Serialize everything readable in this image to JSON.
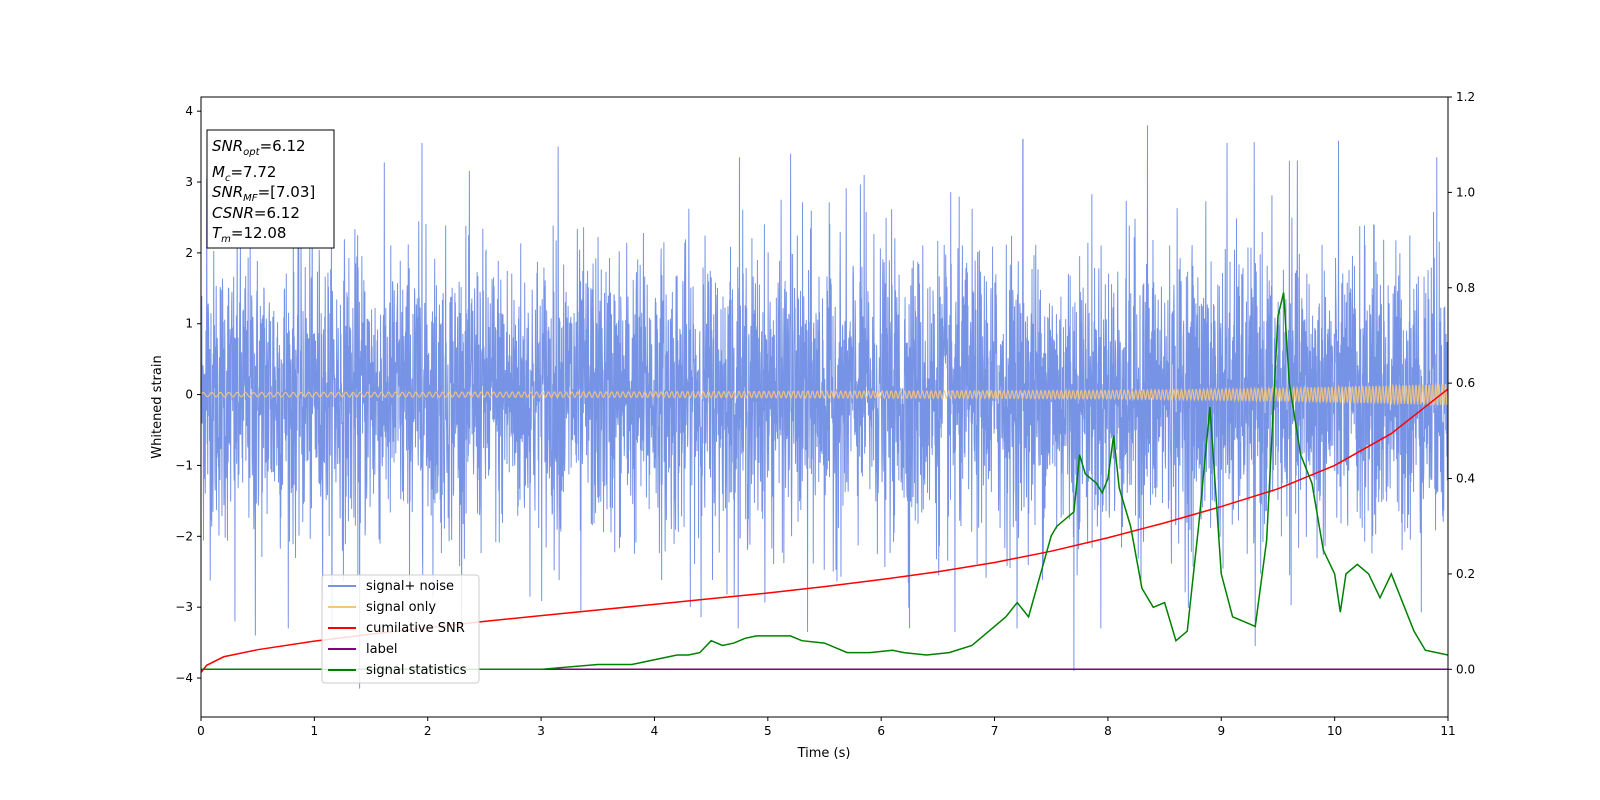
{
  "chart_data": {
    "type": "line",
    "xlabel": "Time (s)",
    "ylabel": "Whitened strain",
    "xlim": [
      0,
      11
    ],
    "ylim_left": [
      -4.55,
      4.2
    ],
    "ylim_right": [
      -0.1,
      1.2
    ],
    "x_ticks": [
      0,
      1,
      2,
      3,
      4,
      5,
      6,
      7,
      8,
      9,
      10,
      11
    ],
    "y_left_ticks": [
      -4,
      -3,
      -2,
      -1,
      0,
      1,
      2,
      3,
      4
    ],
    "y_right_ticks": [
      0.0,
      0.2,
      0.4,
      0.6,
      0.8,
      1.0,
      1.2
    ],
    "grid": false,
    "legend_position": "lower-left",
    "annotation": [
      {
        "base": "SNR",
        "sub": "opt",
        "value": "=6.12"
      },
      {
        "base": "M",
        "sub": "c",
        "value": "=7.72"
      },
      {
        "base": "SNR",
        "sub": "MF",
        "value": "=[7.03]"
      },
      {
        "base": "CSNR",
        "sub": "",
        "value": "=6.12"
      },
      {
        "base": "T",
        "sub": "m",
        "value": "=12.08"
      }
    ],
    "series": [
      {
        "name": "signal+ noise",
        "color": "#7793e6",
        "axis": "left",
        "description": "whitened detector strain, approx. zero-mean noise with spread about ±1.5 and peaks near ±3.5",
        "envelope": {
          "x": [
            0,
            11
          ],
          "y_min": -3.3,
          "y_max": 3.6
        },
        "spikes": [
          {
            "x": 0.05,
            "y": 3.05
          },
          {
            "x": 0.3,
            "y": -3.2
          },
          {
            "x": 0.48,
            "y": -3.4
          },
          {
            "x": 1.4,
            "y": -4.15
          },
          {
            "x": 1.95,
            "y": 3.55
          },
          {
            "x": 3.15,
            "y": 3.5
          },
          {
            "x": 3.35,
            "y": -3.05
          },
          {
            "x": 4.75,
            "y": 3.35
          },
          {
            "x": 5.2,
            "y": 3.4
          },
          {
            "x": 5.35,
            "y": -3.35
          },
          {
            "x": 5.85,
            "y": 3.1
          },
          {
            "x": 6.25,
            "y": -3.3
          },
          {
            "x": 6.65,
            "y": -3.35
          },
          {
            "x": 7.25,
            "y": 3.6
          },
          {
            "x": 7.7,
            "y": -3.9
          },
          {
            "x": 8.35,
            "y": 3.8
          },
          {
            "x": 9.05,
            "y": 3.55
          },
          {
            "x": 9.3,
            "y": -3.55
          },
          {
            "x": 9.6,
            "y": 3.3
          },
          {
            "x": 10.9,
            "y": 3.35
          }
        ]
      },
      {
        "name": "signal only",
        "color": "#f5c77a",
        "axis": "left",
        "description": "chirp waveform with amplitude growing from ~0.03 at t=0 to ~0.15 at t=11",
        "amplitude": {
          "x": [
            0,
            4,
            8,
            9,
            10,
            11
          ],
          "y": [
            0.03,
            0.04,
            0.06,
            0.08,
            0.11,
            0.15
          ]
        }
      },
      {
        "name": "cumilative SNR",
        "color": "#ff0000",
        "axis": "left",
        "x": [
          0,
          0.05,
          0.2,
          0.5,
          1,
          1.5,
          2,
          2.5,
          3,
          3.5,
          4,
          4.5,
          5,
          5.5,
          6,
          6.5,
          7,
          7.5,
          8,
          8.5,
          9,
          9.5,
          10,
          10.5,
          11
        ],
        "y": [
          -3.92,
          -3.82,
          -3.7,
          -3.6,
          -3.48,
          -3.38,
          -3.29,
          -3.2,
          -3.12,
          -3.04,
          -2.96,
          -2.88,
          -2.8,
          -2.71,
          -2.61,
          -2.5,
          -2.37,
          -2.21,
          -2.02,
          -1.81,
          -1.58,
          -1.33,
          -1.0,
          -0.55,
          0.08
        ]
      },
      {
        "name": "label",
        "color": "#800080",
        "axis": "right",
        "x": [
          0,
          11
        ],
        "y": [
          0.0,
          0.0
        ]
      },
      {
        "name": "signal statistics",
        "color": "#008000",
        "axis": "right",
        "x": [
          0,
          1,
          2,
          3,
          3.5,
          3.8,
          3.9,
          4.0,
          4.2,
          4.3,
          4.4,
          4.5,
          4.6,
          4.7,
          4.8,
          4.9,
          5.0,
          5.2,
          5.3,
          5.5,
          5.7,
          5.9,
          6.1,
          6.2,
          6.4,
          6.6,
          6.8,
          6.9,
          7.1,
          7.2,
          7.3,
          7.5,
          7.55,
          7.7,
          7.75,
          7.8,
          7.9,
          7.95,
          8.0,
          8.05,
          8.1,
          8.2,
          8.3,
          8.4,
          8.5,
          8.6,
          8.7,
          8.8,
          8.9,
          9.0,
          9.1,
          9.2,
          9.3,
          9.4,
          9.5,
          9.55,
          9.6,
          9.7,
          9.8,
          9.9,
          10.0,
          10.05,
          10.1,
          10.2,
          10.3,
          10.4,
          10.5,
          10.6,
          10.7,
          10.8,
          11.0
        ],
        "y": [
          0.0,
          0.0,
          0.0,
          0.0,
          0.01,
          0.01,
          0.015,
          0.02,
          0.03,
          0.03,
          0.035,
          0.06,
          0.05,
          0.055,
          0.065,
          0.07,
          0.07,
          0.07,
          0.06,
          0.055,
          0.035,
          0.035,
          0.04,
          0.035,
          0.03,
          0.035,
          0.05,
          0.07,
          0.11,
          0.14,
          0.11,
          0.28,
          0.3,
          0.33,
          0.45,
          0.41,
          0.39,
          0.37,
          0.4,
          0.49,
          0.38,
          0.3,
          0.17,
          0.13,
          0.14,
          0.06,
          0.08,
          0.3,
          0.55,
          0.2,
          0.11,
          0.1,
          0.09,
          0.27,
          0.74,
          0.79,
          0.6,
          0.45,
          0.39,
          0.25,
          0.2,
          0.12,
          0.2,
          0.22,
          0.2,
          0.15,
          0.2,
          0.14,
          0.08,
          0.04,
          0.03
        ]
      }
    ]
  }
}
